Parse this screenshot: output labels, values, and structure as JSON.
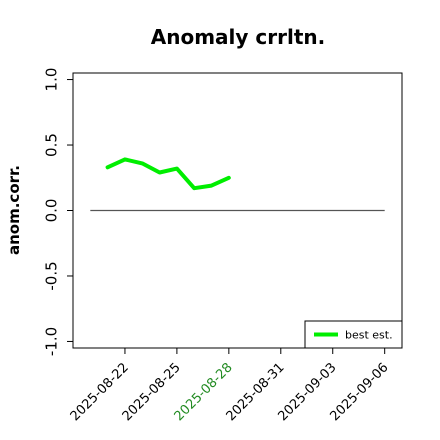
{
  "chart_data": {
    "type": "line",
    "title": "Anomaly crrltn.",
    "xlabel": "",
    "ylabel": "anom.corr.",
    "ylim": [
      -1.05,
      1.05
    ],
    "y_ticks": [
      -1.0,
      -0.5,
      0.0,
      0.5,
      1.0
    ],
    "y_tick_labels": [
      "-1.0",
      "-0.5",
      "0.0",
      "0.5",
      "1.0"
    ],
    "x_range": [
      "2025-08-19",
      "2025-09-07"
    ],
    "x_ticks": [
      "2025-08-22",
      "2025-08-25",
      "2025-08-28",
      "2025-08-31",
      "2025-09-03",
      "2025-09-06"
    ],
    "highlight_tick": "2025-08-28",
    "reference_line": {
      "y": 0.0,
      "from": "2025-08-20",
      "to": "2025-09-06"
    },
    "series": [
      {
        "name": "best est.",
        "x": [
          "2025-08-21",
          "2025-08-22",
          "2025-08-23",
          "2025-08-24",
          "2025-08-25",
          "2025-08-26",
          "2025-08-27",
          "2025-08-28"
        ],
        "values": [
          0.33,
          0.39,
          0.36,
          0.29,
          0.32,
          0.17,
          0.19,
          0.25
        ]
      }
    ],
    "legend_position": "bottom-right",
    "grid": false
  },
  "colors": {
    "series": "#00ee00",
    "highlight_tick": "#228b22",
    "reference_line": "#555555",
    "axis": "#000000"
  }
}
